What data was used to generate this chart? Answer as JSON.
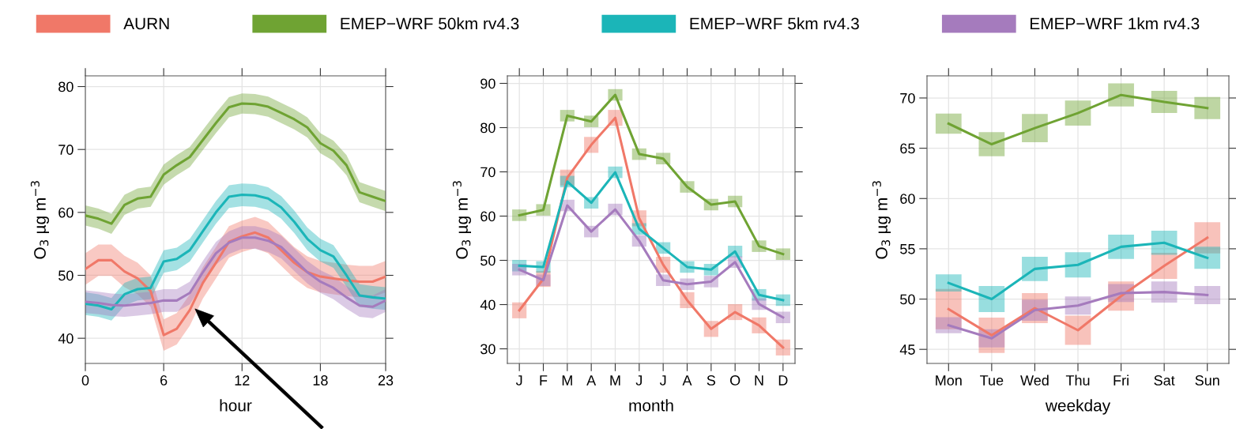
{
  "chart_data": [
    {
      "type": "line",
      "xlabel": "hour",
      "ylabel": "O$_{3}$ µg m$^{−3}$",
      "legend": "top",
      "grid": true,
      "x": [
        0,
        1,
        2,
        3,
        4,
        5,
        6,
        7,
        8,
        9,
        10,
        11,
        12,
        13,
        14,
        15,
        16,
        17,
        18,
        19,
        20,
        21,
        22,
        23
      ],
      "xlim": [
        0,
        23
      ],
      "xticks": [
        0,
        6,
        12,
        18,
        23
      ],
      "ylim": [
        36,
        81.7
      ],
      "yticks": [
        40,
        50,
        60,
        70,
        80
      ],
      "series": [
        {
          "name": "AURN",
          "color": "#f07868",
          "values": [
            51,
            52.4,
            52.4,
            50.6,
            49.5,
            47.5,
            40.5,
            41.5,
            44.5,
            48.8,
            52,
            55.3,
            56.2,
            56.8,
            56,
            54,
            52,
            50.5,
            49.8,
            49.5,
            49.2,
            49,
            49,
            49.8
          ],
          "lower": [
            48.5,
            49.9,
            49.9,
            48.1,
            47,
            45,
            38,
            39,
            42,
            46.3,
            49.5,
            52.8,
            53.7,
            54.3,
            53.5,
            51.5,
            49.5,
            48,
            47.3,
            47,
            46.7,
            46.5,
            46.5,
            47.3
          ],
          "upper": [
            53.5,
            54.9,
            54.9,
            53.1,
            52,
            50,
            43,
            44,
            47,
            51.3,
            54.5,
            57.8,
            58.7,
            59.3,
            58.5,
            56.5,
            54.5,
            53,
            52.3,
            52,
            51.7,
            51.5,
            51.5,
            52.3
          ]
        },
        {
          "name": "EMEP−WRF 50km rv4.3",
          "color": "#6fa333",
          "values": [
            59.5,
            59,
            58.2,
            61.2,
            62.2,
            62.5,
            66,
            67.5,
            68.8,
            71.5,
            74.2,
            76.7,
            77.3,
            77.2,
            76.8,
            75.8,
            74.8,
            73.5,
            71,
            69.8,
            67.5,
            63.2,
            62.5,
            61.8
          ],
          "lower": [
            57.9,
            57.4,
            56.6,
            59.6,
            60.6,
            60.9,
            64.4,
            65.9,
            67.2,
            69.9,
            72.6,
            75.1,
            75.7,
            75.6,
            75.2,
            74.2,
            73.2,
            71.9,
            69.4,
            68.2,
            65.9,
            61.6,
            60.9,
            60.2
          ],
          "upper": [
            61.1,
            60.6,
            59.8,
            62.8,
            63.8,
            64.1,
            67.6,
            69.1,
            70.4,
            73.1,
            75.8,
            78.3,
            78.9,
            78.8,
            78.4,
            77.4,
            76.4,
            75.1,
            72.6,
            71.4,
            69.1,
            64.8,
            64.1,
            63.4
          ]
        },
        {
          "name": "EMEP−WRF 5km rv4.3",
          "color": "#1bb5b8",
          "values": [
            45.5,
            45.2,
            44.6,
            47,
            47.8,
            48,
            52.2,
            52.6,
            54,
            57,
            60,
            62.5,
            62.8,
            62.7,
            62.2,
            60.8,
            58.5,
            55.8,
            54,
            53,
            50,
            46.8,
            46.5,
            46.3
          ],
          "lower": [
            43.7,
            43.4,
            42.8,
            45.2,
            46,
            46.2,
            50.4,
            50.8,
            52.2,
            55.2,
            58.2,
            60.7,
            61,
            60.9,
            60.4,
            59,
            56.7,
            54,
            52.2,
            51.2,
            48.2,
            45,
            44.7,
            44.5
          ],
          "upper": [
            47.3,
            47,
            46.4,
            48.8,
            49.6,
            49.8,
            54,
            54.4,
            55.8,
            58.8,
            61.8,
            64.3,
            64.6,
            64.5,
            64,
            62.6,
            60.3,
            57.6,
            55.8,
            54.8,
            51.8,
            48.6,
            48.3,
            48.1
          ]
        },
        {
          "name": "EMEP−WRF 1km rv4.3",
          "color": "#a57bbd",
          "values": [
            45.8,
            45.6,
            45.3,
            45.2,
            45.4,
            45.6,
            46,
            46,
            47.2,
            50.5,
            53.5,
            55.2,
            56,
            56,
            55.5,
            54.5,
            52.5,
            50.5,
            49,
            48,
            46.5,
            45.2,
            45,
            46
          ],
          "lower": [
            44,
            43.8,
            43.5,
            43.4,
            43.6,
            43.8,
            44.2,
            44.2,
            45.4,
            48.7,
            51.7,
            53.4,
            54.2,
            54.2,
            53.7,
            52.7,
            50.7,
            48.7,
            47.2,
            46.2,
            44.7,
            43.4,
            43.2,
            44.2
          ],
          "upper": [
            47.6,
            47.4,
            47.1,
            47,
            47.2,
            47.4,
            47.8,
            47.8,
            49,
            52.3,
            55.3,
            57,
            57.8,
            57.8,
            57.3,
            56.3,
            54.3,
            52.3,
            50.8,
            49.8,
            48.3,
            47,
            46.8,
            47.8
          ]
        }
      ]
    },
    {
      "type": "line",
      "xlabel": "month",
      "ylabel": "O$_{3}$ µg m$^{−3}$",
      "grid": true,
      "categories": [
        "J",
        "F",
        "M",
        "A",
        "M",
        "J",
        "J",
        "A",
        "S",
        "O",
        "N",
        "D"
      ],
      "ylim": [
        26.7,
        91.7
      ],
      "yticks": [
        30,
        40,
        50,
        60,
        70,
        80,
        90
      ],
      "series": [
        {
          "color": "#f07868",
          "values": [
            38.7,
            45.8,
            68.7,
            76.1,
            82.2,
            59.5,
            49,
            41,
            34.5,
            38.3,
            35.3,
            30.3
          ],
          "errors": [
            1.8,
            1.8,
            1.8,
            1.8,
            1.8,
            1.8,
            1.8,
            1.8,
            1.8,
            1.8,
            1.8,
            1.8
          ]
        },
        {
          "color": "#6fa333",
          "values": [
            60.2,
            61.4,
            82.7,
            81.4,
            87.4,
            74,
            73,
            66.6,
            62.6,
            63.3,
            53.2,
            51.4
          ],
          "errors": [
            1.3,
            1.3,
            1.3,
            1.3,
            1.3,
            1.3,
            1.3,
            1.3,
            1.3,
            1.3,
            1.3,
            1.3
          ]
        },
        {
          "color": "#1bb5b8",
          "values": [
            48.8,
            48.5,
            67.8,
            63,
            69.9,
            57.1,
            52.8,
            48.5,
            47.9,
            52,
            42.2,
            41
          ],
          "errors": [
            1.3,
            1.3,
            1.3,
            1.3,
            1.3,
            1.3,
            1.3,
            1.3,
            1.3,
            1.3,
            1.3,
            1.3
          ]
        },
        {
          "color": "#a57bbd",
          "values": [
            47.9,
            45.5,
            62.4,
            56.5,
            61.5,
            54.4,
            45.5,
            44.6,
            45.2,
            49.6,
            40.1,
            37.1
          ],
          "errors": [
            1.3,
            1.3,
            1.3,
            1.3,
            1.3,
            1.3,
            1.3,
            1.3,
            1.3,
            1.3,
            1.3,
            1.3
          ]
        }
      ]
    },
    {
      "type": "line",
      "xlabel": "weekday",
      "ylabel": "O$_{3}$ µg m$^{−3}$",
      "grid": true,
      "categories": [
        "Mon",
        "Tue",
        "Wed",
        "Thu",
        "Fri",
        "Sat",
        "Sun"
      ],
      "ylim": [
        43.6,
        72.2
      ],
      "yticks": [
        45,
        50,
        55,
        60,
        65,
        70
      ],
      "series": [
        {
          "color": "#f07868",
          "values": [
            49.0,
            46.4,
            49.1,
            46.9,
            50.3,
            53.3,
            56.1
          ],
          "errors": [
            2,
            1.75,
            1.5,
            1.45,
            1.45,
            1.3,
            1.55
          ]
        },
        {
          "color": "#6fa333",
          "values": [
            67.45,
            65.4,
            67.0,
            68.5,
            70.3,
            69.6,
            69.0
          ],
          "errors": [
            1.0,
            1.2,
            1.4,
            1.25,
            1.15,
            1.1,
            1.1
          ]
        },
        {
          "color": "#1bb5b8",
          "values": [
            51.6,
            50.0,
            53.0,
            53.4,
            55.2,
            55.6,
            54.1
          ],
          "errors": [
            0.85,
            1.3,
            1.2,
            1.25,
            1.2,
            1.2,
            1.1
          ]
        },
        {
          "color": "#a57bbd",
          "values": [
            47.4,
            46.1,
            48.9,
            49.35,
            50.6,
            50.7,
            50.4
          ],
          "errors": [
            0.8,
            0.9,
            1.05,
            0.9,
            0.9,
            1.05,
            0.9
          ]
        }
      ]
    }
  ]
}
